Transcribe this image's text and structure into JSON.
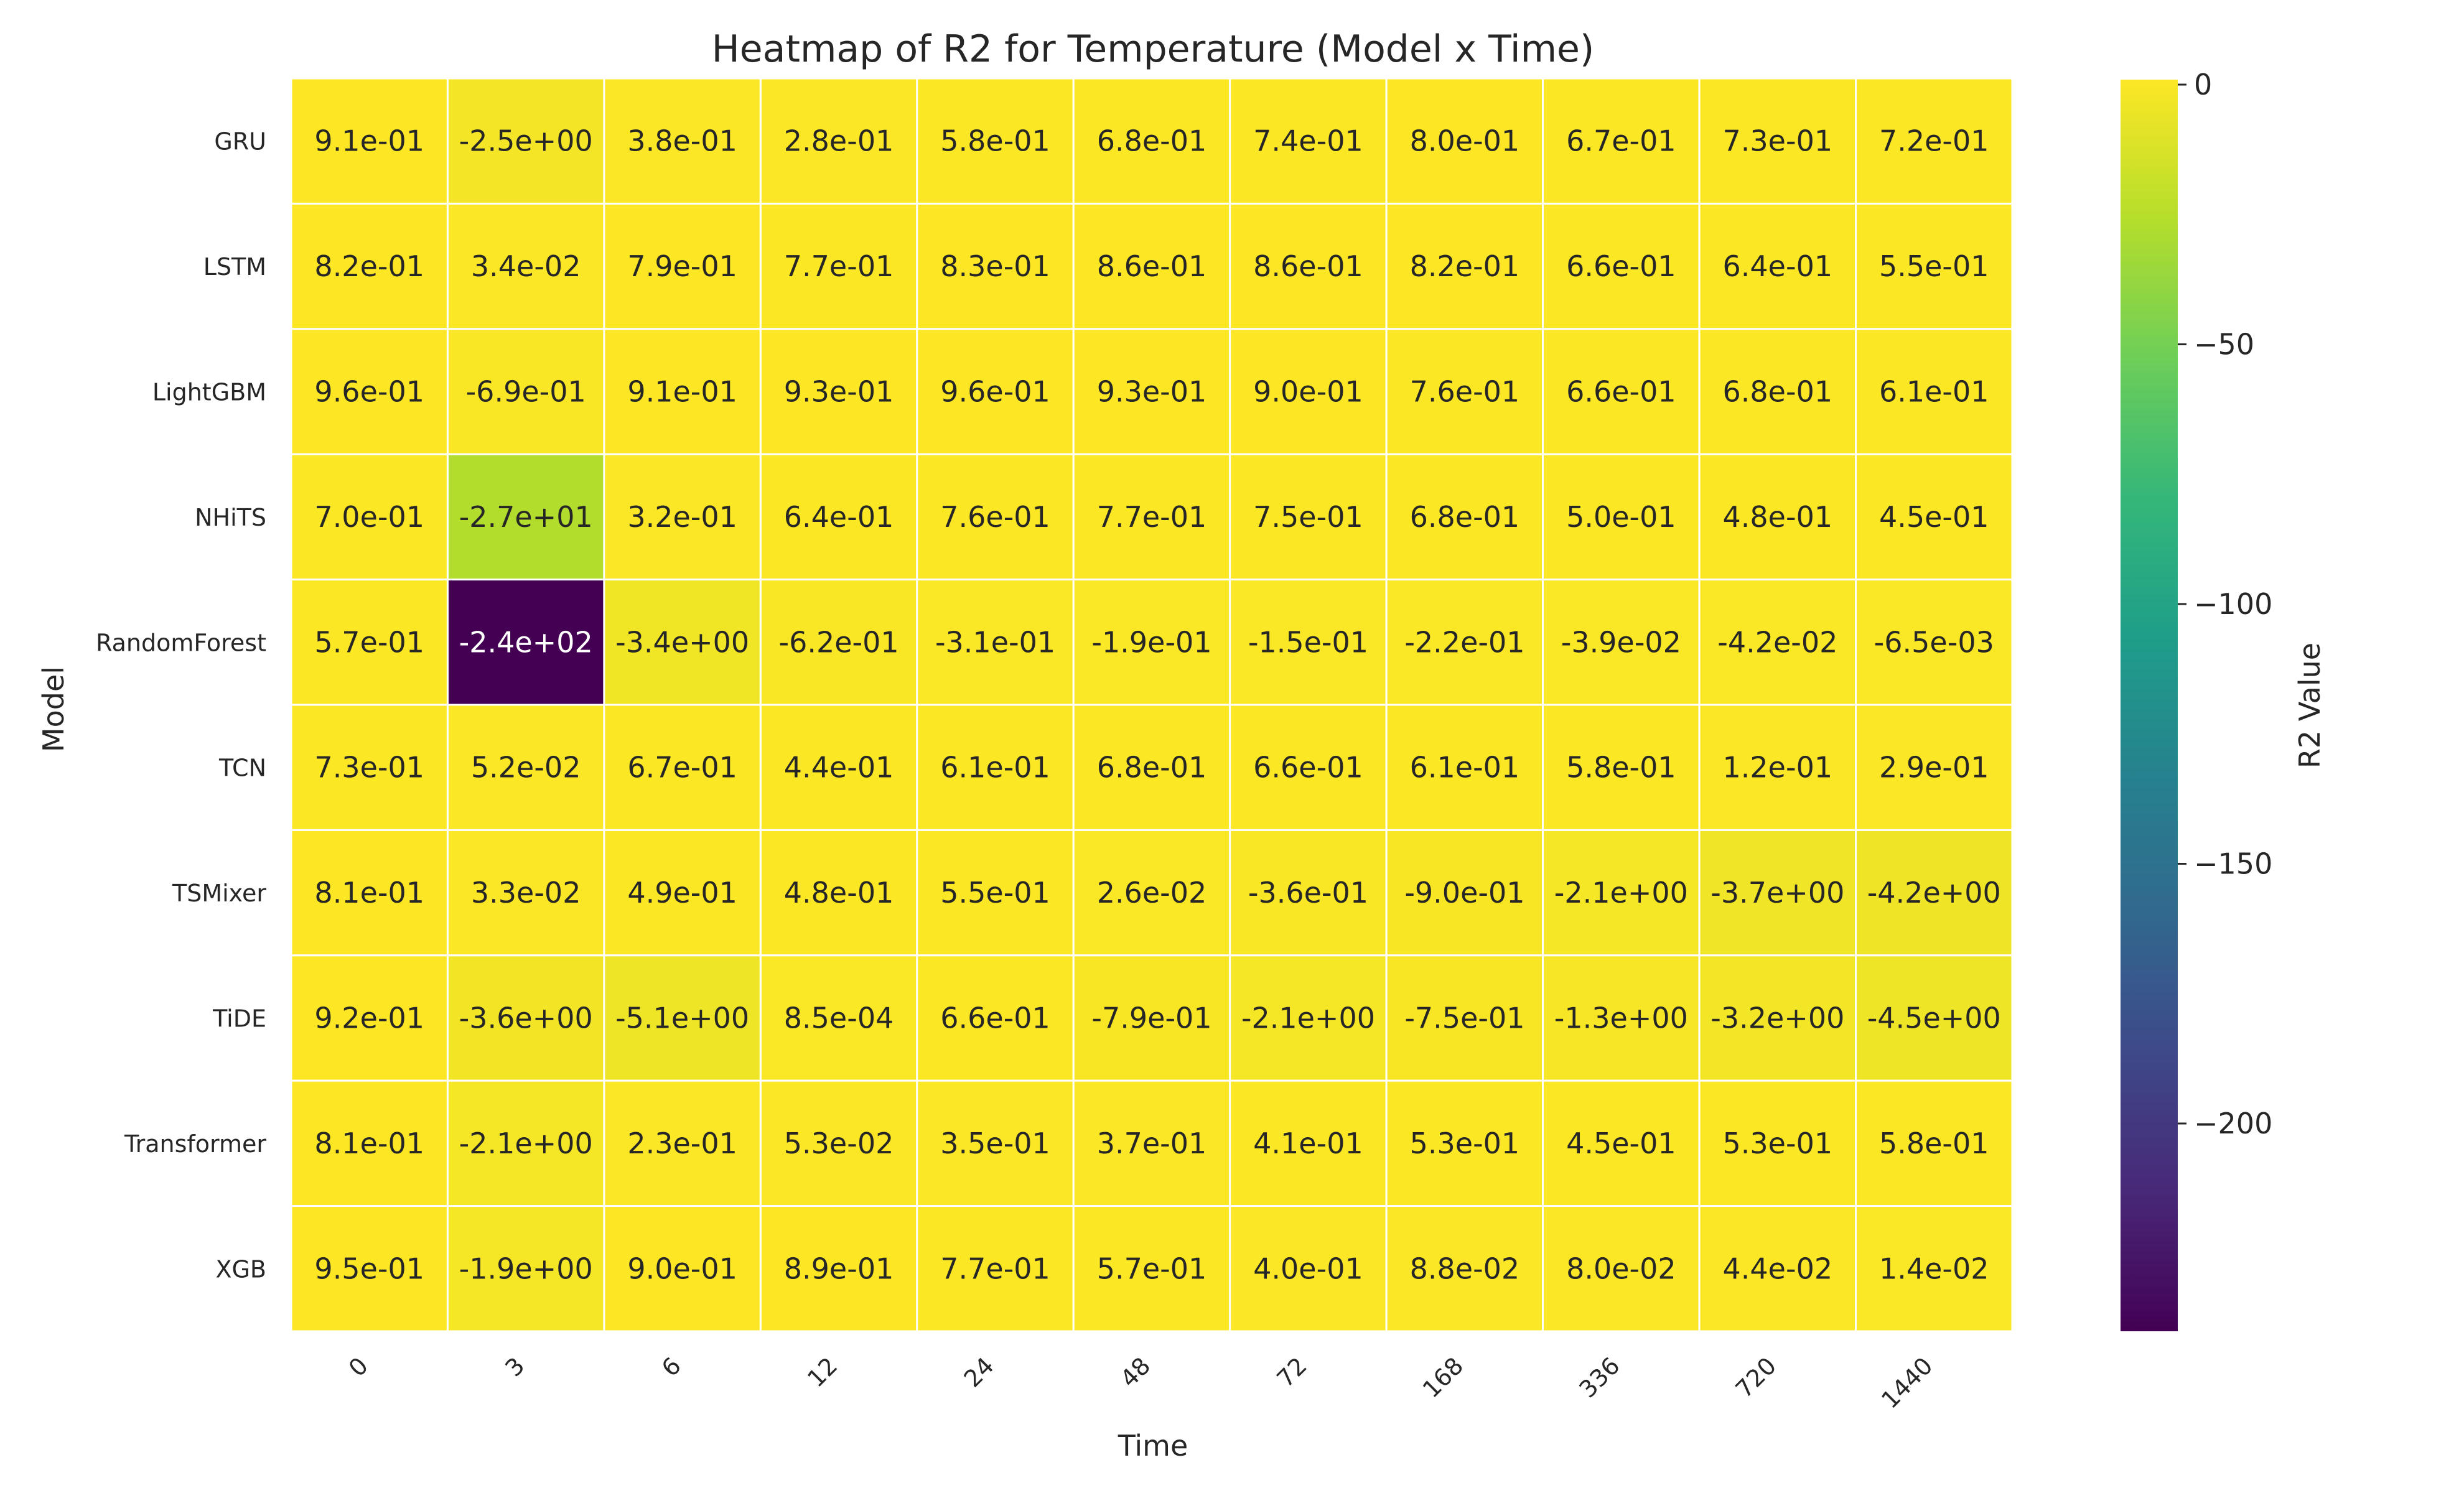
{
  "chart_data": {
    "type": "heatmap",
    "title": "Heatmap of R2 for Temperature (Model x Time)",
    "xlabel": "Time",
    "ylabel": "Model",
    "x_categories": [
      "0",
      "3",
      "6",
      "12",
      "24",
      "48",
      "72",
      "168",
      "336",
      "720",
      "1440"
    ],
    "y_categories": [
      "GRU",
      "LSTM",
      "LightGBM",
      "NHiTS",
      "RandomForest",
      "TCN",
      "TSMixer",
      "TiDE",
      "Transformer",
      "XGB"
    ],
    "values": [
      [
        0.91,
        -2.5,
        0.38,
        0.28,
        0.58,
        0.68,
        0.74,
        0.8,
        0.67,
        0.73,
        0.72
      ],
      [
        0.82,
        0.034,
        0.79,
        0.77,
        0.83,
        0.86,
        0.86,
        0.82,
        0.66,
        0.64,
        0.55
      ],
      [
        0.96,
        -0.69,
        0.91,
        0.93,
        0.96,
        0.93,
        0.9,
        0.76,
        0.66,
        0.68,
        0.61
      ],
      [
        0.7,
        -27,
        0.32,
        0.64,
        0.76,
        0.77,
        0.75,
        0.68,
        0.5,
        0.48,
        0.45
      ],
      [
        0.57,
        -240,
        -3.4,
        -0.62,
        -0.31,
        -0.19,
        -0.15,
        -0.22,
        -0.039,
        -0.042,
        -0.0065
      ],
      [
        0.73,
        0.052,
        0.67,
        0.44,
        0.61,
        0.68,
        0.66,
        0.61,
        0.58,
        0.12,
        0.29
      ],
      [
        0.81,
        0.033,
        0.49,
        0.48,
        0.55,
        0.026,
        -0.36,
        -0.9,
        -2.1,
        -3.7,
        -4.2
      ],
      [
        0.92,
        -3.6,
        -5.1,
        0.00085,
        0.66,
        -0.79,
        -2.1,
        -0.75,
        -1.3,
        -3.2,
        -4.5
      ],
      [
        0.81,
        -2.1,
        0.23,
        0.053,
        0.35,
        0.37,
        0.41,
        0.53,
        0.45,
        0.53,
        0.58
      ],
      [
        0.95,
        -1.9,
        0.9,
        0.89,
        0.77,
        0.57,
        0.4,
        0.088,
        0.08,
        0.044,
        0.014
      ]
    ],
    "value_labels": [
      [
        "9.1e-01",
        "-2.5e+00",
        "3.8e-01",
        "2.8e-01",
        "5.8e-01",
        "6.8e-01",
        "7.4e-01",
        "8.0e-01",
        "6.7e-01",
        "7.3e-01",
        "7.2e-01"
      ],
      [
        "8.2e-01",
        "3.4e-02",
        "7.9e-01",
        "7.7e-01",
        "8.3e-01",
        "8.6e-01",
        "8.6e-01",
        "8.2e-01",
        "6.6e-01",
        "6.4e-01",
        "5.5e-01"
      ],
      [
        "9.6e-01",
        "-6.9e-01",
        "9.1e-01",
        "9.3e-01",
        "9.6e-01",
        "9.3e-01",
        "9.0e-01",
        "7.6e-01",
        "6.6e-01",
        "6.8e-01",
        "6.1e-01"
      ],
      [
        "7.0e-01",
        "-2.7e+01",
        "3.2e-01",
        "6.4e-01",
        "7.6e-01",
        "7.7e-01",
        "7.5e-01",
        "6.8e-01",
        "5.0e-01",
        "4.8e-01",
        "4.5e-01"
      ],
      [
        "5.7e-01",
        "-2.4e+02",
        "-3.4e+00",
        "-6.2e-01",
        "-3.1e-01",
        "-1.9e-01",
        "-1.5e-01",
        "-2.2e-01",
        "-3.9e-02",
        "-4.2e-02",
        "-6.5e-03"
      ],
      [
        "7.3e-01",
        "5.2e-02",
        "6.7e-01",
        "4.4e-01",
        "6.1e-01",
        "6.8e-01",
        "6.6e-01",
        "6.1e-01",
        "5.8e-01",
        "1.2e-01",
        "2.9e-01"
      ],
      [
        "8.1e-01",
        "3.3e-02",
        "4.9e-01",
        "4.8e-01",
        "5.5e-01",
        "2.6e-02",
        "-3.6e-01",
        "-9.0e-01",
        "-2.1e+00",
        "-3.7e+00",
        "-4.2e+00"
      ],
      [
        "9.2e-01",
        "-3.6e+00",
        "-5.1e+00",
        "8.5e-04",
        "6.6e-01",
        "-7.9e-01",
        "-2.1e+00",
        "-7.5e-01",
        "-1.3e+00",
        "-3.2e+00",
        "-4.5e+00"
      ],
      [
        "8.1e-01",
        "-2.1e+00",
        "2.3e-01",
        "5.3e-02",
        "3.5e-01",
        "3.7e-01",
        "4.1e-01",
        "5.3e-01",
        "4.5e-01",
        "5.3e-01",
        "5.8e-01"
      ],
      [
        "9.5e-01",
        "-1.9e+00",
        "9.0e-01",
        "8.9e-01",
        "7.7e-01",
        "5.7e-01",
        "4.0e-01",
        "8.8e-02",
        "8.0e-02",
        "4.4e-02",
        "1.4e-02"
      ]
    ],
    "colormap": "viridis",
    "vmin": -240,
    "vmax": 0.96,
    "colorbar": {
      "label": "R2 Value",
      "ticks": [
        0,
        -50,
        -100,
        -150,
        -200
      ],
      "tick_labels": [
        "0",
        "−50",
        "−100",
        "−150",
        "−200"
      ],
      "position": "right"
    },
    "grid": false,
    "cell_border_color": "#ffffff",
    "annotation_color_dark": "#262626",
    "annotation_color_light": "#ffffff"
  }
}
